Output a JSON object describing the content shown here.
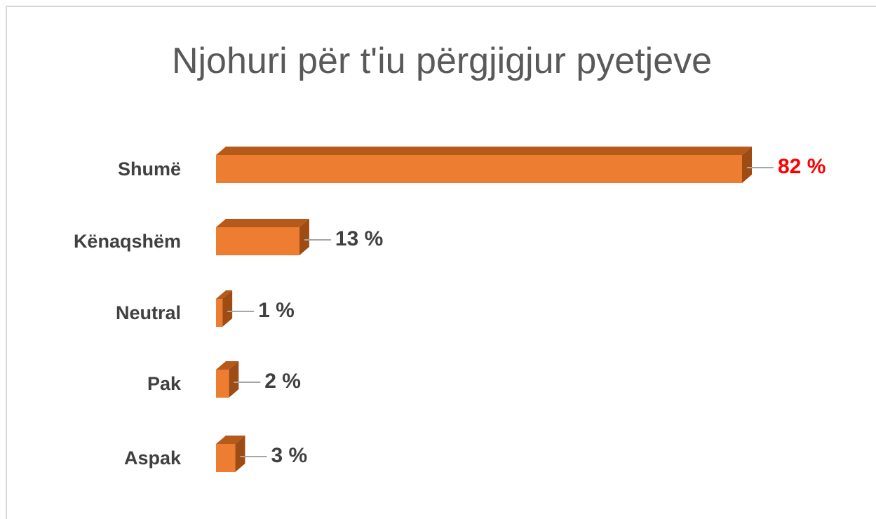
{
  "chart_data": {
    "type": "bar3d",
    "title": "Njohuri për t'iu përgjigjur pyetjeve",
    "categories": [
      "Shumë",
      "Kënaqshëm",
      "Neutral",
      "Pak",
      "Aspak"
    ],
    "values": [
      82,
      13,
      1,
      2,
      3
    ],
    "value_labels": [
      "82 %",
      "13 %",
      "1 %",
      "2 %",
      "3 %"
    ],
    "value_label_colors": [
      "#ff0000",
      "#404040",
      "#404040",
      "#404040",
      "#404040"
    ],
    "color": "#ed7d31"
  }
}
